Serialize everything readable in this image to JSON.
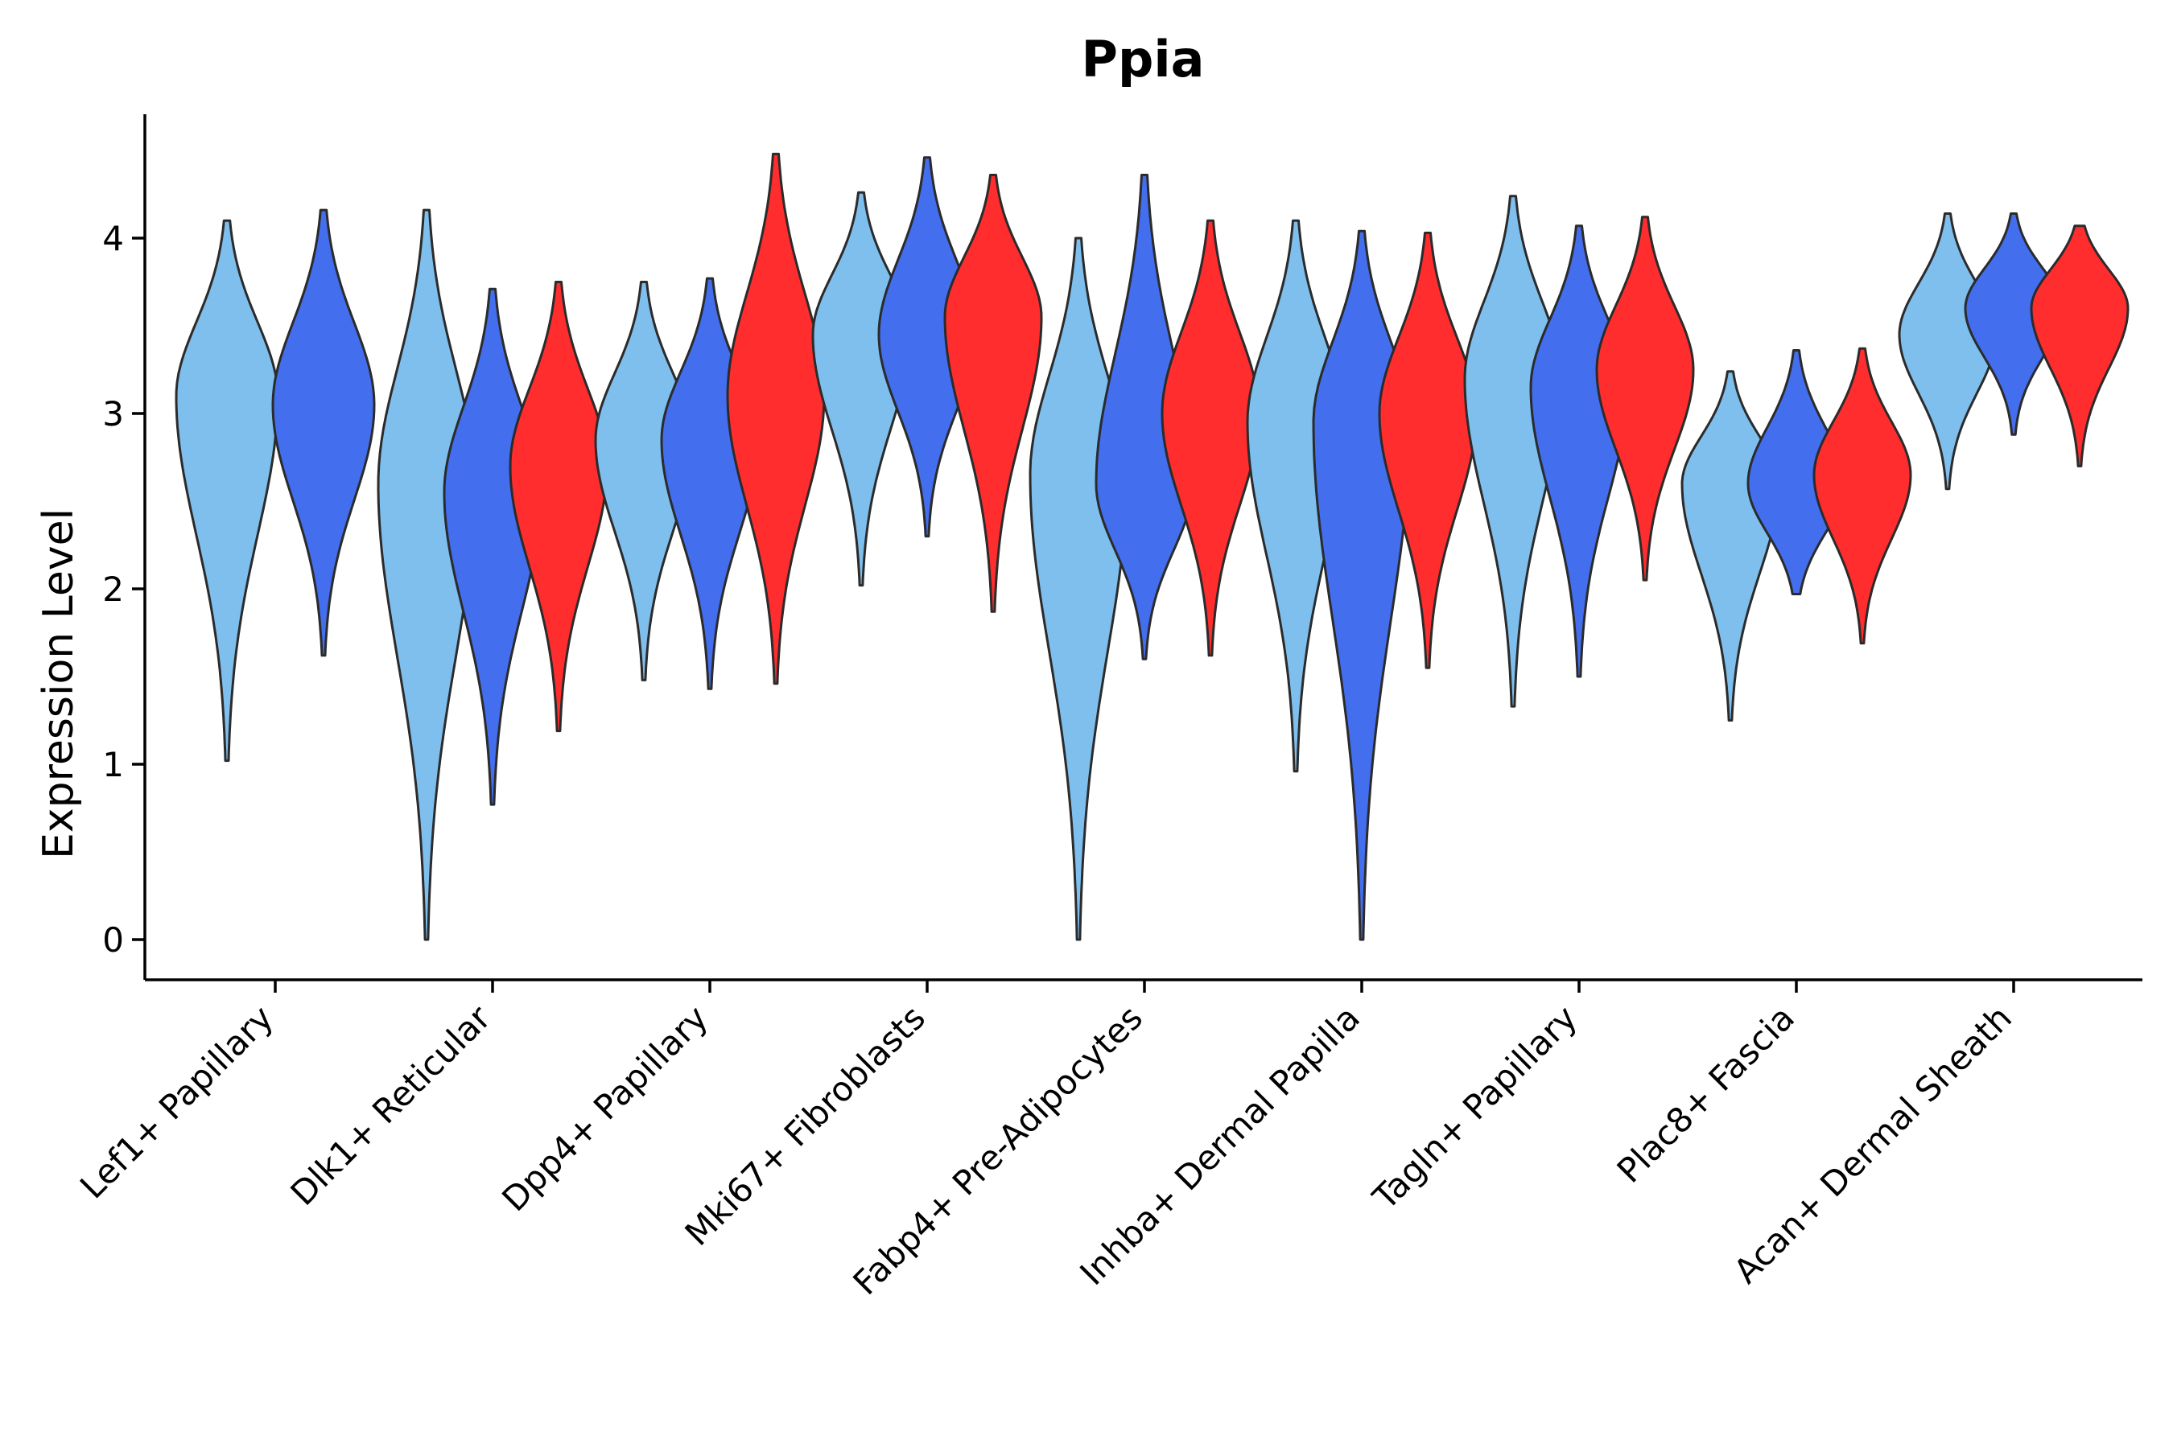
{
  "chart_data": {
    "type": "violin",
    "title": "Ppia",
    "xlabel": "",
    "ylabel": "Expression Level",
    "ylim": [
      -0.22,
      4.72
    ],
    "yticks": [
      0,
      1,
      2,
      3,
      4
    ],
    "grid": false,
    "legend": "none",
    "series_colors": [
      "#7fbfed",
      "#436eee",
      "#ff2d2d"
    ],
    "categories": [
      {
        "label": "Lef1+ Papillary",
        "violins": [
          {
            "color": "#7fbfed",
            "min": 1.02,
            "max": 4.1,
            "mode": 3.1,
            "halfwidth": 0.95,
            "skew": 0.0
          },
          {
            "color": "#436eee",
            "min": 1.62,
            "max": 4.16,
            "mode": 3.05,
            "halfwidth": 0.95,
            "skew": 0.0
          }
        ]
      },
      {
        "label": "Dlk1+ Reticular",
        "violins": [
          {
            "color": "#7fbfed",
            "min": 0.0,
            "max": 4.16,
            "mode": 2.6,
            "halfwidth": 0.65,
            "skew": 0.0
          },
          {
            "color": "#436eee",
            "min": 0.77,
            "max": 3.71,
            "mode": 2.55,
            "halfwidth": 0.65,
            "skew": 0.0
          },
          {
            "color": "#ff2d2d",
            "min": 1.19,
            "max": 3.75,
            "mode": 2.7,
            "halfwidth": 0.65,
            "skew": 0.0
          }
        ]
      },
      {
        "label": "Dpp4+ Papillary",
        "violins": [
          {
            "color": "#7fbfed",
            "min": 1.48,
            "max": 3.75,
            "mode": 2.85,
            "halfwidth": 0.65,
            "skew": 0.0
          },
          {
            "color": "#436eee",
            "min": 1.43,
            "max": 3.77,
            "mode": 2.85,
            "halfwidth": 0.65,
            "skew": 0.0
          },
          {
            "color": "#ff2d2d",
            "min": 1.46,
            "max": 4.48,
            "mode": 3.1,
            "halfwidth": 0.65,
            "skew": 0.0
          }
        ]
      },
      {
        "label": "Mki67+ Fibroblasts",
        "violins": [
          {
            "color": "#7fbfed",
            "min": 2.02,
            "max": 4.26,
            "mode": 3.45,
            "halfwidth": 0.65,
            "skew": 0.0
          },
          {
            "color": "#436eee",
            "min": 2.3,
            "max": 4.46,
            "mode": 3.45,
            "halfwidth": 0.65,
            "skew": 0.0
          },
          {
            "color": "#ff2d2d",
            "min": 1.87,
            "max": 4.36,
            "mode": 3.55,
            "halfwidth": 0.65,
            "skew": 0.0
          }
        ]
      },
      {
        "label": "Fabp4+ Pre-Adipocytes",
        "violins": [
          {
            "color": "#7fbfed",
            "min": 0.0,
            "max": 4.0,
            "mode": 2.65,
            "halfwidth": 0.65,
            "skew": 0.0
          },
          {
            "color": "#436eee",
            "min": 1.6,
            "max": 4.36,
            "mode": 2.6,
            "halfwidth": 0.65,
            "skew": 0.0
          },
          {
            "color": "#ff2d2d",
            "min": 1.62,
            "max": 4.1,
            "mode": 3.0,
            "halfwidth": 0.65,
            "skew": 0.0
          }
        ]
      },
      {
        "label": "Inhba+ Dermal Papilla",
        "violins": [
          {
            "color": "#7fbfed",
            "min": 0.96,
            "max": 4.1,
            "mode": 2.95,
            "halfwidth": 0.65,
            "skew": 0.0
          },
          {
            "color": "#436eee",
            "min": 0.0,
            "max": 4.04,
            "mode": 2.95,
            "halfwidth": 0.65,
            "skew": 0.0
          },
          {
            "color": "#ff2d2d",
            "min": 1.55,
            "max": 4.03,
            "mode": 3.0,
            "halfwidth": 0.65,
            "skew": 0.0
          }
        ]
      },
      {
        "label": "Tagln+ Papillary",
        "violins": [
          {
            "color": "#7fbfed",
            "min": 1.33,
            "max": 4.24,
            "mode": 3.2,
            "halfwidth": 0.65,
            "skew": 0.0
          },
          {
            "color": "#436eee",
            "min": 1.5,
            "max": 4.07,
            "mode": 3.15,
            "halfwidth": 0.65,
            "skew": 0.0
          },
          {
            "color": "#ff2d2d",
            "min": 2.05,
            "max": 4.12,
            "mode": 3.25,
            "halfwidth": 0.65,
            "skew": 0.0
          }
        ]
      },
      {
        "label": "Plac8+ Fascia",
        "violins": [
          {
            "color": "#7fbfed",
            "min": 1.25,
            "max": 3.24,
            "mode": 2.6,
            "halfwidth": 0.65,
            "skew": 0.0
          },
          {
            "color": "#436eee",
            "min": 1.97,
            "max": 3.36,
            "mode": 2.6,
            "halfwidth": 0.65,
            "skew": 0.0
          },
          {
            "color": "#ff2d2d",
            "min": 1.69,
            "max": 3.37,
            "mode": 2.65,
            "halfwidth": 0.65,
            "skew": 0.0
          }
        ]
      },
      {
        "label": "Acan+ Dermal Sheath",
        "violins": [
          {
            "color": "#7fbfed",
            "min": 2.57,
            "max": 4.14,
            "mode": 3.45,
            "halfwidth": 0.65,
            "skew": 0.0
          },
          {
            "color": "#436eee",
            "min": 2.88,
            "max": 4.14,
            "mode": 3.6,
            "halfwidth": 0.65,
            "skew": 0.0
          },
          {
            "color": "#ff2d2d",
            "min": 2.7,
            "max": 4.07,
            "mode": 3.6,
            "halfwidth": 0.65,
            "skew": 0.0
          }
        ]
      }
    ]
  }
}
